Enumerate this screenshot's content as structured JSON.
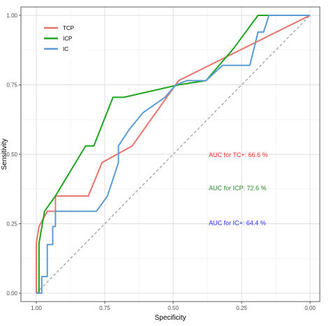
{
  "chart_data": {
    "type": "line",
    "title": "",
    "xlabel": "Specificity",
    "ylabel": "Sensitivity",
    "xlim": [
      1.0,
      0.0
    ],
    "ylim": [
      0.0,
      1.0
    ],
    "x_reversed": true,
    "grid": true,
    "x_ticks": [
      "1.00",
      "0.75",
      "0.50",
      "0.25",
      "0.00"
    ],
    "x_tick_values": [
      1.0,
      0.75,
      0.5,
      0.25,
      0.0
    ],
    "y_ticks": [
      "0.00",
      "0.25",
      "0.50",
      "0.75",
      "1.00"
    ],
    "y_tick_values": [
      0.0,
      0.25,
      0.5,
      0.75,
      1.0
    ],
    "legend_placement": "top-left",
    "diagonal_reference": true,
    "series": [
      {
        "name": "TCP",
        "color": "#e8736b",
        "x": [
          1.0,
          1.0,
          0.99,
          0.96,
          0.93,
          0.93,
          0.81,
          0.76,
          0.65,
          0.48,
          0.0
        ],
        "y": [
          0.0,
          0.18,
          0.24,
          0.295,
          0.295,
          0.35,
          0.35,
          0.47,
          0.53,
          0.765,
          1.0
        ]
      },
      {
        "name": "ICP",
        "color": "#1fa51f",
        "x": [
          0.99,
          0.99,
          0.97,
          0.93,
          0.82,
          0.79,
          0.72,
          0.68,
          0.48,
          0.38,
          0.28,
          0.19,
          0.15,
          0.0
        ],
        "y": [
          0.0,
          0.18,
          0.295,
          0.35,
          0.53,
          0.53,
          0.705,
          0.705,
          0.75,
          0.765,
          0.88,
          1.0,
          1.0,
          1.0
        ]
      },
      {
        "name": "IC",
        "color": "#5b9bd5",
        "x": [
          1.0,
          0.98,
          0.98,
          0.96,
          0.96,
          0.94,
          0.94,
          0.93,
          0.93,
          0.78,
          0.74,
          0.7,
          0.7,
          0.66,
          0.61,
          0.53,
          0.49,
          0.45,
          0.38,
          0.32,
          0.22,
          0.19,
          0.17,
          0.15,
          0.0
        ],
        "y": [
          0.0,
          0.0,
          0.06,
          0.06,
          0.175,
          0.175,
          0.24,
          0.24,
          0.295,
          0.295,
          0.35,
          0.47,
          0.53,
          0.59,
          0.65,
          0.705,
          0.75,
          0.765,
          0.765,
          0.82,
          0.82,
          0.94,
          0.94,
          1.0,
          1.0
        ]
      }
    ],
    "annotations": [
      {
        "text": "AUC for TC+: 66.6 %",
        "x": 0.37,
        "y": 0.49,
        "color": "#ff2a2a"
      },
      {
        "text": "AUC for ICP: 72.6 %",
        "x": 0.37,
        "y": 0.37,
        "color": "#2a8a2a"
      },
      {
        "text": "AUC for IC+: 64.4 %",
        "x": 0.37,
        "y": 0.245,
        "color": "#2a2aff"
      }
    ]
  }
}
